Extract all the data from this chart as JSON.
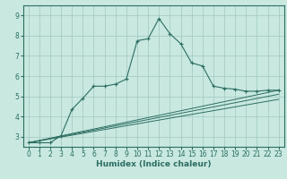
{
  "xlabel": "Humidex (Indice chaleur)",
  "ylabel": "",
  "bg_color": "#c8e8e0",
  "grid_color": "#a0c8c0",
  "line_color": "#2d6e62",
  "xlim": [
    -0.5,
    23.5
  ],
  "ylim": [
    2.5,
    9.5
  ],
  "xticks": [
    0,
    1,
    2,
    3,
    4,
    5,
    6,
    7,
    8,
    9,
    10,
    11,
    12,
    13,
    14,
    15,
    16,
    17,
    18,
    19,
    20,
    21,
    22,
    23
  ],
  "yticks": [
    3,
    4,
    5,
    6,
    7,
    8,
    9
  ],
  "series1_x": [
    0,
    1,
    2,
    3,
    4,
    5,
    6,
    7,
    8,
    9,
    10,
    11,
    12,
    13,
    14,
    15,
    16,
    17,
    18,
    19,
    20,
    21,
    22,
    23
  ],
  "series1_y": [
    2.7,
    2.7,
    2.7,
    3.05,
    4.35,
    4.9,
    5.5,
    5.5,
    5.6,
    5.85,
    7.75,
    7.85,
    8.85,
    8.1,
    7.6,
    6.65,
    6.5,
    5.5,
    5.4,
    5.35,
    5.25,
    5.25,
    5.3,
    5.3
  ],
  "series2_x": [
    0,
    23
  ],
  "series2_y": [
    2.7,
    5.3
  ],
  "series3_x": [
    0,
    23
  ],
  "series3_y": [
    2.7,
    4.85
  ],
  "series4_x": [
    0,
    23
  ],
  "series4_y": [
    2.7,
    5.1
  ],
  "font_size_label": 6.5,
  "font_size_tick": 5.5
}
